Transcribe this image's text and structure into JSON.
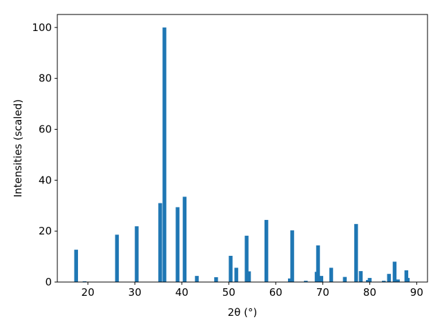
{
  "chart_data": {
    "type": "bar",
    "x_label": "2θ (°)",
    "y_label": "Intensities (scaled)",
    "color": "#1f77b4",
    "x": [
      17.5,
      19.3,
      26.2,
      30.4,
      35.4,
      36.3,
      39.1,
      40.6,
      43.2,
      47.3,
      50.4,
      51.6,
      53.8,
      54.3,
      58.0,
      63.0,
      63.5,
      66.4,
      68.7,
      69.0,
      69.7,
      71.8,
      74.7,
      77.1,
      78.1,
      79.6,
      80.0,
      83.0,
      84.1,
      85.3,
      86.0,
      87.8,
      88.1
    ],
    "values": [
      12.7,
      0.3,
      18.6,
      21.9,
      31.0,
      100,
      29.4,
      33.5,
      2.4,
      1.9,
      10.3,
      5.6,
      18.2,
      4.2,
      24.4,
      1.4,
      20.3,
      0.5,
      4.0,
      14.4,
      2.4,
      5.6,
      2.0,
      22.8,
      4.3,
      0.8,
      1.6,
      0.5,
      3.2,
      8.0,
      1.0,
      4.6,
      1.6
    ],
    "xlim": [
      13.5,
      92.3
    ],
    "xticks": [
      20,
      30,
      40,
      50,
      60,
      70,
      80,
      90
    ],
    "ylim": [
      0,
      105.1
    ],
    "yticks": [
      0,
      20,
      40,
      60,
      80,
      100
    ]
  }
}
